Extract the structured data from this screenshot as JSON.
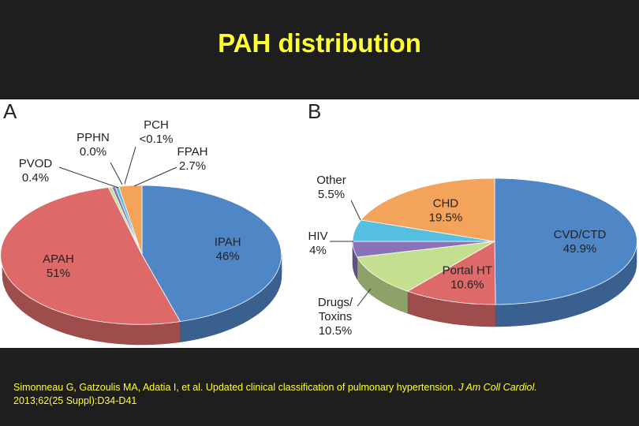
{
  "slide": {
    "title": "PAH distribution"
  },
  "citation": {
    "text": "Simonneau G, Gatzoulis MA, Adatia I, et al. Updated clinical classification of pulmonary hypertension. ",
    "journal": "J Am Coll Cardiol.",
    "details": "2013;62(25 Suppl):D34-D41"
  },
  "colors": {
    "blue": "#4f86c6",
    "red": "#dd6a69",
    "orange": "#f4a35a",
    "green": "#c5df90",
    "purple": "#8a72b8",
    "cyan": "#55bfe2",
    "yellow": "#ffff33"
  },
  "chart_data": [
    {
      "type": "pie",
      "panel_label": "A",
      "title": "",
      "slices": [
        {
          "name": "IPAH",
          "label": "46%",
          "value": 46,
          "color": "blue"
        },
        {
          "name": "APAH",
          "label": "51%",
          "value": 51,
          "color": "red"
        },
        {
          "name": "PVOD",
          "label": "0.4%",
          "value": 0.4,
          "color": "green"
        },
        {
          "name": "PPHN",
          "label": "0.0%",
          "value": 0.0,
          "color": "purple"
        },
        {
          "name": "PCH",
          "label": "<0.1%",
          "value": 0.1,
          "color": "cyan"
        },
        {
          "name": "FPAH",
          "label": "2.7%",
          "value": 2.7,
          "color": "orange"
        }
      ]
    },
    {
      "type": "pie",
      "panel_label": "B",
      "title": "",
      "slices": [
        {
          "name": "CVD/CTD",
          "label": "49.9%",
          "value": 49.9,
          "color": "blue"
        },
        {
          "name": "Portal HT",
          "label": "10.6%",
          "value": 10.6,
          "color": "red"
        },
        {
          "name": "Drugs/ Toxins",
          "name_lines": [
            "Drugs/",
            "Toxins"
          ],
          "label": "10.5%",
          "value": 10.5,
          "color": "green"
        },
        {
          "name": "HIV",
          "label": "4%",
          "value": 4,
          "color": "purple"
        },
        {
          "name": "Other",
          "label": "5.5%",
          "value": 5.5,
          "color": "cyan"
        },
        {
          "name": "CHD",
          "label": "19.5%",
          "value": 19.5,
          "color": "orange"
        }
      ]
    }
  ]
}
